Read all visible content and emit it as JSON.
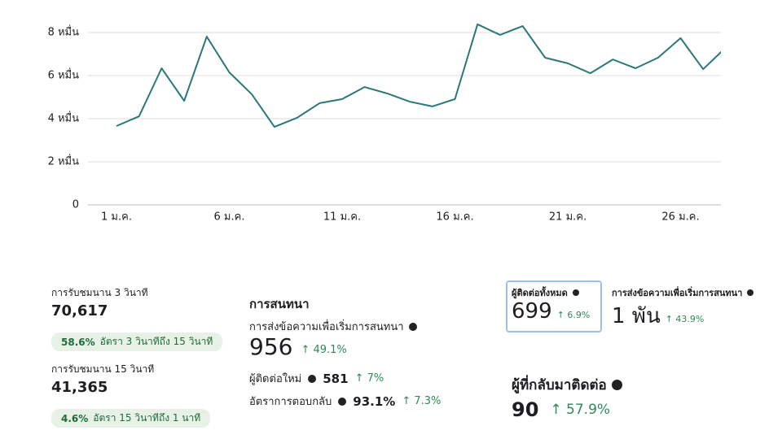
{
  "chart_data": {
    "type": "line",
    "categories": [
      "1 ม.ค.",
      null,
      null,
      null,
      null,
      "6 ม.ค.",
      null,
      null,
      null,
      null,
      "11 ม.ค.",
      null,
      null,
      null,
      null,
      "16 ม.ค.",
      null,
      null,
      null,
      null,
      "21 ม.ค.",
      null,
      null,
      null,
      null,
      "26 ม.ค.",
      null,
      null
    ],
    "series": [
      {
        "color": "#2b7878",
        "values": [
          36600,
          41100,
          63400,
          48300,
          78100,
          61500,
          51300,
          36200,
          40400,
          47200,
          49100,
          54700,
          51700,
          47900,
          45700,
          49100,
          83800,
          78900,
          83000,
          68300,
          65700,
          61100,
          67500,
          63400,
          68300,
          77400,
          63000,
          73000
        ]
      }
    ],
    "ylim": [
      0,
      80000
    ],
    "yticks": [
      0,
      {
        "value": 20000,
        "label": "2 หมื่น"
      },
      {
        "value": 40000,
        "label": "4 หมื่น"
      },
      {
        "value": 60000,
        "label": "6 หมื่น"
      },
      {
        "value": 80000,
        "label": "8 หมื่น"
      }
    ],
    "grid": true
  },
  "views": [
    {
      "label": "การรับชมนาน 3 วินาที",
      "value": "70,617",
      "rate": "58.6%",
      "rate_label": "อัตรา 3 วินาทีถึง 15 วินาที"
    },
    {
      "label": "การรับชมนาน 15 วินาที",
      "value": "41,365",
      "rate": "4.6%",
      "rate_label": "อัตรา 15 วินาทีถึง 1 นาที"
    }
  ],
  "conversation": {
    "title": "การสนทนา",
    "started": {
      "label": "การส่งข้อความเพื่อเริ่มการสนทนา",
      "value": "956",
      "change": "↑ 49.1%"
    },
    "new_contacts": {
      "label": "ผู้ติดต่อใหม่",
      "value": "581",
      "change": "↑ 7%"
    },
    "response_rate": {
      "label": "อัตราการตอบกลับ",
      "value": "93.1%",
      "change": "↑ 7.3%"
    }
  },
  "contacts": {
    "total": {
      "label": "ผู้ติดต่อทั้งหมด",
      "value": "699",
      "change": "↑ 6.9%"
    },
    "started": {
      "label": "การส่งข้อความเพื่อเริ่มการสนทนา",
      "value": "1 พัน",
      "change": "↑ 43.9%"
    },
    "returning": {
      "label": "ผู้ที่กลับมาติดต่อ",
      "value": "90",
      "change": "↑ 57.9%"
    }
  }
}
